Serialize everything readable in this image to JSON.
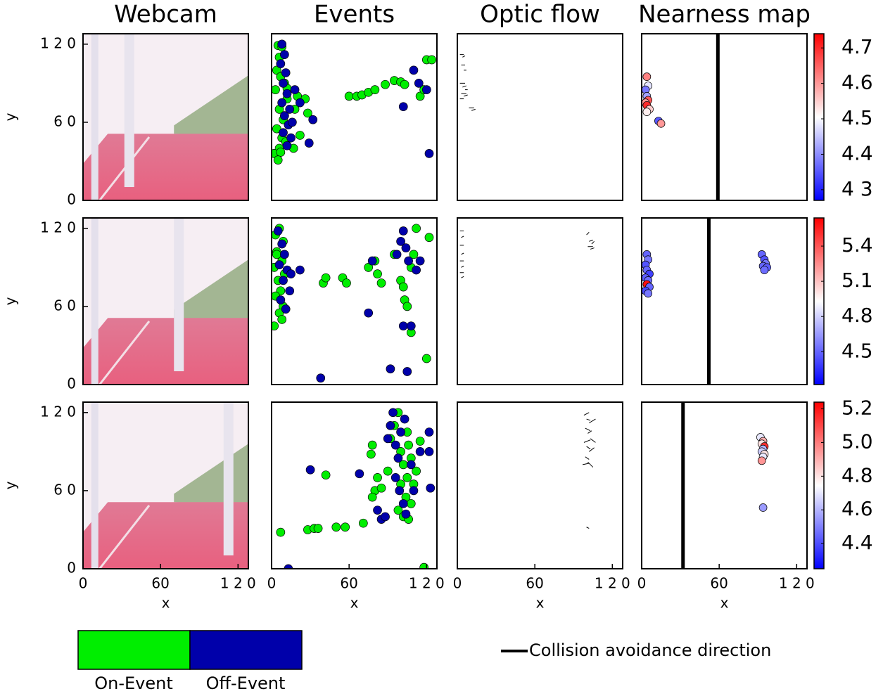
{
  "column_titles": [
    "Webcam",
    "Events",
    "Optic flow",
    "Nearness map"
  ],
  "legend": {
    "patches": [
      {
        "name": "On-Event",
        "color": "#00ee00"
      },
      {
        "name": "Off-Event",
        "color": "#0000aa"
      }
    ],
    "line": {
      "name": "Collision avoidance direction"
    }
  },
  "chart_data": [
    {
      "type": "image",
      "xlim": [
        0,
        128
      ],
      "ylim": [
        0,
        128
      ],
      "ylabel": "y",
      "yticks": [
        0,
        {
          "value": 60,
          "label": "6 0"
        },
        {
          "value": 120,
          "label": "1 2 0"
        }
      ]
    },
    {
      "type": "scatter",
      "xlim": [
        0,
        128
      ],
      "ylim": [
        0,
        128
      ],
      "series": [
        {
          "x": [
            5,
            8,
            6,
            4,
            7,
            3,
            10,
            12,
            6,
            9,
            4,
            8,
            11,
            6,
            2,
            7,
            5,
            12,
            20,
            18,
            26,
            28,
            22,
            17,
            60,
            66,
            70,
            75,
            80,
            88,
            95,
            100,
            103,
            115,
            120,
            124,
            118
          ],
          "y": [
            119,
            118,
            110,
            100,
            95,
            85,
            90,
            78,
            70,
            62,
            55,
            48,
            45,
            40,
            36,
            37,
            31,
            86,
            80,
            70,
            78,
            67,
            50,
            40,
            80,
            80,
            81,
            83,
            85,
            89,
            92,
            91,
            89,
            80,
            108,
            108,
            85
          ]
        },
        {
          "x": [
            8,
            10,
            7,
            11,
            9,
            12,
            8,
            14,
            10,
            13,
            9,
            15,
            12,
            18,
            22,
            16,
            32,
            29,
            102,
            114,
            110,
            120,
            122
          ],
          "y": [
            120,
            112,
            105,
            98,
            90,
            82,
            75,
            70,
            65,
            58,
            52,
            48,
            42,
            85,
            75,
            60,
            62,
            44,
            72,
            90,
            100,
            85,
            36
          ]
        }
      ]
    },
    {
      "type": "flow",
      "xlim": [
        0,
        128
      ],
      "ylim": [
        0,
        128
      ],
      "x": [
        2,
        4,
        3,
        5,
        2,
        4,
        6,
        3,
        5,
        2,
        9,
        11
      ],
      "y": [
        112,
        110,
        104,
        100,
        90,
        87,
        85,
        82,
        80,
        78,
        71,
        69
      ],
      "u": [
        3,
        2,
        3,
        2,
        4,
        3,
        2,
        4,
        3,
        3,
        4,
        3
      ],
      "v": [
        0,
        1,
        0,
        0,
        0,
        1,
        0,
        0,
        1,
        0,
        0,
        1
      ]
    },
    {
      "type": "nearness",
      "xlim": [
        0,
        128
      ],
      "ylim": [
        0,
        128
      ],
      "colormap": "bwr",
      "x": [
        4,
        5,
        3,
        4,
        5,
        3,
        4,
        6,
        4,
        13,
        15
      ],
      "y": [
        95,
        88,
        85,
        80,
        77,
        75,
        73,
        70,
        68,
        61,
        59
      ],
      "values": [
        4.62,
        4.48,
        4.38,
        4.42,
        4.66,
        4.6,
        4.7,
        4.55,
        4.52,
        4.35,
        4.6
      ],
      "clim": [
        4.27,
        4.74
      ],
      "cticks": [
        4.7,
        4.6,
        4.5,
        4.4,
        {
          "value": 4.3,
          "label": "4 3"
        }
      ],
      "direction": 59
    },
    {
      "type": "image",
      "xlim": [
        0,
        128
      ],
      "ylim": [
        0,
        128
      ],
      "ylabel": "y",
      "yticks": [
        0,
        {
          "value": 60,
          "label": "6 0"
        },
        {
          "value": 120,
          "label": "1 2 0"
        }
      ]
    },
    {
      "type": "scatter",
      "xlim": [
        0,
        128
      ],
      "ylim": [
        0,
        128
      ],
      "series": [
        {
          "x": [
            3,
            6,
            9,
            4,
            8,
            2,
            10,
            5,
            7,
            3,
            9,
            6,
            2,
            8,
            4,
            40,
            42,
            55,
            58,
            75,
            80,
            82,
            85,
            95,
            100,
            102,
            103,
            105,
            108,
            112,
            110,
            108,
            120,
            122
          ],
          "y": [
            115,
            120,
            110,
            102,
            95,
            90,
            85,
            80,
            72,
            68,
            60,
            55,
            45,
            50,
            100,
            78,
            82,
            82,
            78,
            90,
            95,
            85,
            78,
            100,
            80,
            75,
            65,
            60,
            40,
            120,
            100,
            90,
            20,
            113
          ]
        },
        {
          "x": [
            5,
            8,
            10,
            6,
            12,
            9,
            14,
            7,
            11,
            15,
            22,
            38,
            75,
            78,
            92,
            97,
            100,
            102,
            104,
            106,
            102,
            108,
            112,
            115,
            105
          ],
          "y": [
            118,
            108,
            100,
            92,
            88,
            80,
            72,
            65,
            58,
            85,
            88,
            5,
            55,
            95,
            12,
            100,
            110,
            118,
            105,
            95,
            45,
            45,
            88,
            95,
            10
          ]
        }
      ]
    },
    {
      "type": "flow",
      "xlim": [
        0,
        128
      ],
      "ylim": [
        0,
        128
      ],
      "x": [
        2,
        3,
        2,
        3,
        2,
        3,
        2,
        3,
        100,
        102,
        104,
        103,
        101
      ],
      "y": [
        118,
        113,
        107,
        100,
        95,
        90,
        86,
        82,
        115,
        110,
        108,
        104,
        106
      ],
      "u": [
        3,
        2,
        3,
        2,
        3,
        2,
        3,
        2,
        2,
        3,
        2,
        3,
        4
      ],
      "v": [
        0,
        1,
        0,
        1,
        0,
        1,
        0,
        1,
        2,
        1,
        2,
        1,
        0
      ]
    },
    {
      "type": "nearness",
      "xlim": [
        0,
        128
      ],
      "ylim": [
        0,
        128
      ],
      "colormap": "bwr",
      "x": [
        4,
        5,
        3,
        4,
        6,
        3,
        5,
        4,
        6,
        3,
        5,
        93,
        95,
        96,
        94,
        97,
        95
      ],
      "y": [
        100,
        96,
        92,
        88,
        85,
        82,
        80,
        77,
        75,
        72,
        70,
        100,
        96,
        93,
        91,
        90,
        88
      ],
      "values": [
        4.5,
        4.55,
        4.45,
        4.5,
        4.4,
        4.48,
        4.52,
        5.6,
        4.5,
        4.42,
        4.55,
        4.5,
        4.45,
        4.55,
        4.5,
        4.48,
        4.52
      ],
      "clim": [
        4.22,
        5.64
      ],
      "cticks": [
        5.4,
        5.1,
        4.8,
        4.5
      ],
      "direction": 52
    },
    {
      "type": "image",
      "xlim": [
        0,
        128
      ],
      "ylim": [
        0,
        128
      ],
      "ylabel": "y",
      "xlabel": "x",
      "yticks": [
        0,
        {
          "value": 60,
          "label": "6 0"
        },
        {
          "value": 120,
          "label": "1 2 0"
        }
      ],
      "xticks": [
        0,
        60,
        {
          "value": 120,
          "label": "1 2 0"
        }
      ]
    },
    {
      "type": "scatter",
      "xlim": [
        0,
        128
      ],
      "ylim": [
        0,
        128
      ],
      "xlabel": "x",
      "xticks": [
        0,
        60,
        {
          "value": 120,
          "label": "1 2 0"
        }
      ],
      "series": [
        {
          "x": [
            7,
            28,
            33,
            36,
            42,
            50,
            57,
            71,
            77,
            78,
            80,
            78,
            82,
            85,
            90,
            92,
            95,
            98,
            100,
            102,
            100,
            104,
            98,
            102,
            105,
            106,
            108,
            105,
            110,
            108,
            106,
            115,
            118,
            112
          ],
          "y": [
            28,
            30,
            31,
            31,
            72,
            32,
            32,
            35,
            88,
            95,
            60,
            55,
            70,
            62,
            75,
            100,
            110,
            120,
            90,
            80,
            65,
            55,
            45,
            40,
            105,
            95,
            85,
            70,
            65,
            50,
            38,
            98,
            1,
            75
          ]
        },
        {
          "x": [
            13,
            30,
            68,
            82,
            85,
            88,
            90,
            92,
            94,
            96,
            98,
            100,
            103,
            96,
            99,
            102,
            104,
            108,
            110,
            115,
            122,
            123,
            122
          ],
          "y": [
            0,
            76,
            73,
            45,
            38,
            40,
            100,
            110,
            120,
            95,
            85,
            105,
            115,
            70,
            60,
            50,
            42,
            80,
            60,
            90,
            105,
            62,
            90
          ]
        }
      ]
    },
    {
      "type": "flow",
      "xlim": [
        0,
        128
      ],
      "ylim": [
        0,
        128
      ],
      "xlabel": "x",
      "xticks": [
        0,
        60,
        {
          "value": 120,
          "label": "1 2 0"
        }
      ],
      "x": [
        98,
        100,
        102,
        99,
        101,
        103,
        98,
        100,
        102,
        99,
        101,
        97,
        100
      ],
      "y": [
        118,
        115,
        112,
        108,
        104,
        100,
        97,
        94,
        90,
        86,
        82,
        80,
        32
      ],
      "u": [
        4,
        3,
        5,
        4,
        3,
        4,
        5,
        3,
        4,
        3,
        4,
        5,
        2
      ],
      "v": [
        2,
        -1,
        3,
        -2,
        2,
        -3,
        2,
        -2,
        3,
        -2,
        -4,
        1,
        -1
      ]
    },
    {
      "type": "nearness",
      "xlim": [
        0,
        128
      ],
      "ylim": [
        0,
        128
      ],
      "colormap": "bwr",
      "xlabel": "x",
      "xticks": [
        0,
        60,
        {
          "value": 120,
          "label": "1 2 0"
        }
      ],
      "x": [
        92,
        94,
        93,
        95,
        94,
        93,
        95,
        94,
        93,
        94
      ],
      "y": [
        101,
        98,
        96,
        94,
        92,
        90,
        88,
        86,
        83,
        47
      ],
      "values": [
        4.7,
        4.9,
        4.8,
        5.15,
        4.6,
        4.65,
        4.8,
        4.7,
        4.95,
        4.55
      ],
      "clim": [
        4.25,
        5.24
      ],
      "cticks": [
        5.2,
        {
          "value": 5.0,
          "label": "5.0"
        },
        4.8,
        4.6,
        4.4
      ],
      "direction": 32
    }
  ]
}
